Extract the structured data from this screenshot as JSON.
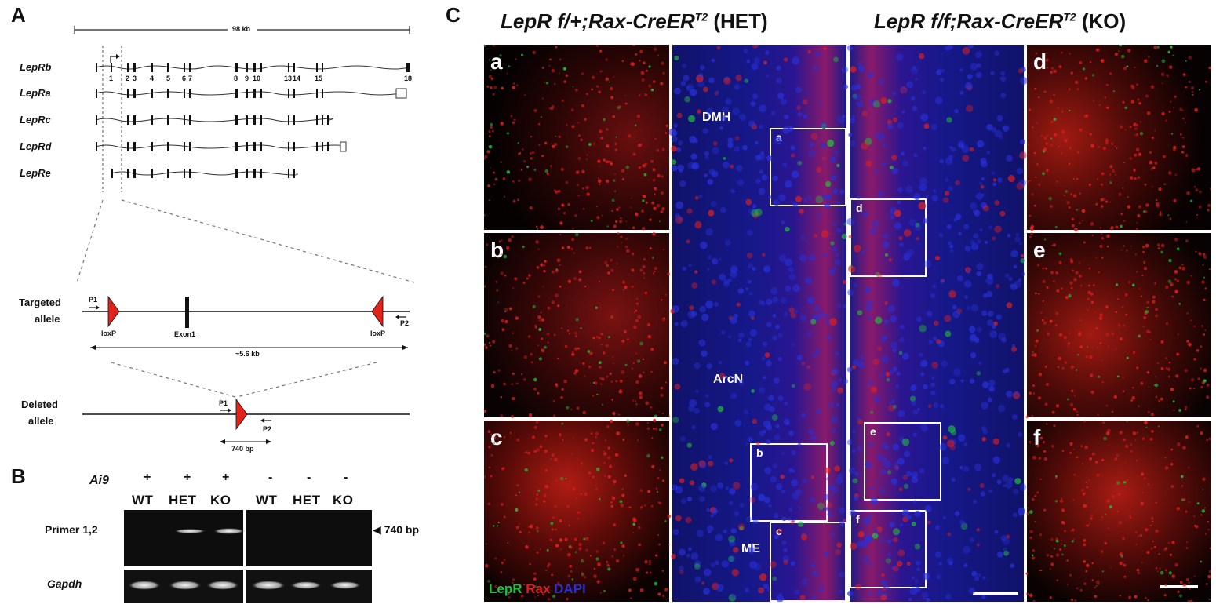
{
  "panels": {
    "A": "A",
    "B": "B",
    "C": "C"
  },
  "panelA": {
    "scale": "98 kb",
    "isoforms": [
      "LepRb",
      "LepRa",
      "LepRc",
      "LepRd",
      "LepRe"
    ],
    "exons": [
      "1",
      "2",
      "3",
      "4",
      "5",
      "6",
      "7",
      "8",
      "9",
      "10",
      "13",
      "14",
      "15",
      "18"
    ],
    "targeted": {
      "label1": "Targeted",
      "label2": "allele",
      "p1": "P1",
      "p2": "P2",
      "loxp": "loxP",
      "exon": "Exon1",
      "size": "~5.6 kb"
    },
    "deleted": {
      "label1": "Deleted",
      "label2": "allele",
      "p1": "P1",
      "p2": "P2",
      "size": "740 bp"
    }
  },
  "panelB": {
    "ai9_label": "Ai9",
    "ai9_signs": [
      "+",
      "+",
      "+",
      "-",
      "-",
      "-"
    ],
    "genotypes": [
      "WT",
      "HET",
      "KO",
      "WT",
      "HET",
      "KO"
    ],
    "row1": "Primer 1,2",
    "row2": "Gapdh",
    "band": "740 bp"
  },
  "panelC": {
    "title_het_italic": "LepR f/+;Rax-CreER",
    "title_het_sup": "T2",
    "title_het_tag": "(HET)",
    "title_ko_italic": "LepR f/f;Rax-CreER",
    "title_ko_sup": "T2",
    "title_ko_tag": "(KO)",
    "insets": [
      "a",
      "b",
      "c",
      "d",
      "e",
      "f"
    ],
    "regions": [
      "DMH",
      "ArcN",
      "ME"
    ],
    "legend": {
      "lepr": "LepR",
      "rax": "Rax",
      "dapi": "DAPI"
    },
    "colors": {
      "lepr": "#22c03a",
      "rax": "#e0201c",
      "dapi": "#2830d8"
    }
  }
}
